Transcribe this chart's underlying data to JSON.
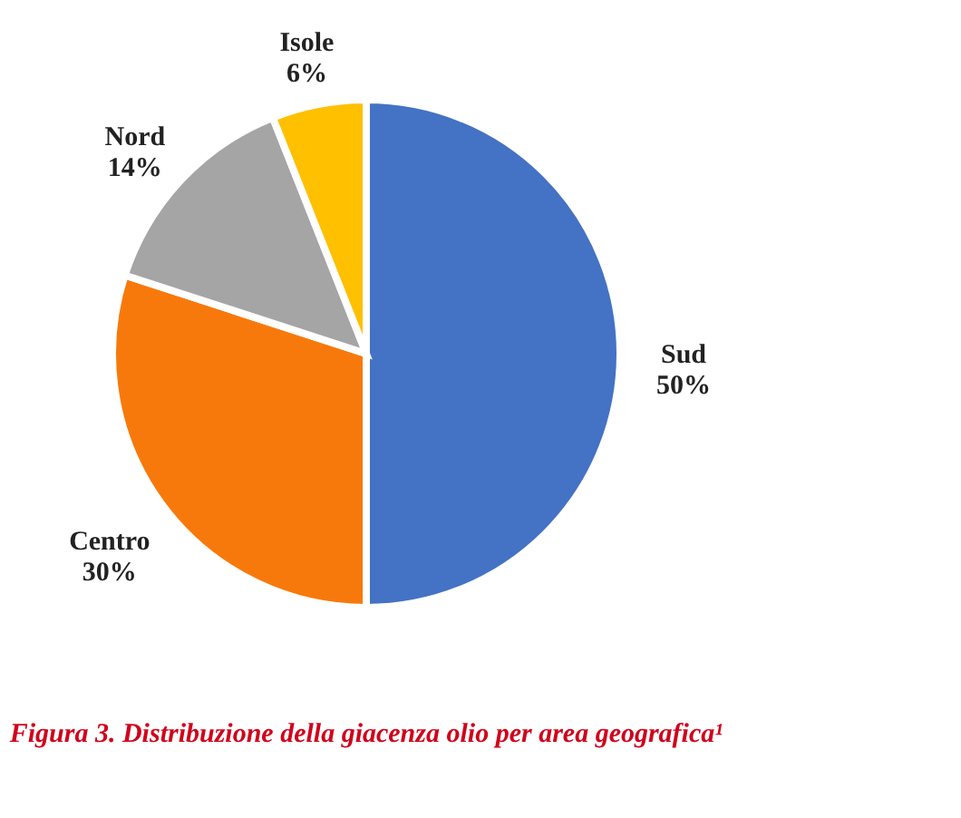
{
  "chart_data": {
    "type": "pie",
    "title": "Figura 3. Distribuzione della giacenza olio per area geografica¹",
    "categories": [
      "Sud",
      "Centro",
      "Nord",
      "Isole"
    ],
    "values": [
      50,
      30,
      14,
      6
    ],
    "value_labels": [
      "50%",
      "30%",
      "14%",
      "6%"
    ],
    "colors": [
      "#4472c4",
      "#f8790b",
      "#a5a5a5",
      "#ffc000"
    ],
    "legend": false
  }
}
